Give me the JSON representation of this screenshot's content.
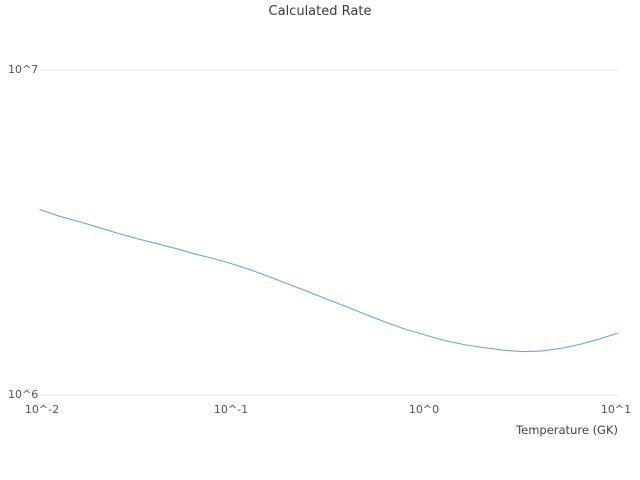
{
  "chart_data": {
    "type": "line",
    "title": "Calculated Rate",
    "xlabel": "Temperature (GK)",
    "ylabel": "",
    "xscale": "log",
    "yscale": "log",
    "xlim_log10": [
      -2,
      1
    ],
    "ylim_log10": [
      6,
      7
    ],
    "xticks": [
      "10^-2",
      "10^-1",
      "10^0",
      "10^1"
    ],
    "yticks": [
      "10^6",
      "10^7"
    ],
    "grid": "major-horizontal",
    "legend": "none",
    "line_color": "#6aa9d8",
    "series": [
      {
        "name": "Calculated Rate",
        "x": [
          0.01,
          0.0126,
          0.0158,
          0.02,
          0.0251,
          0.0316,
          0.0398,
          0.0501,
          0.0631,
          0.0794,
          0.1,
          0.126,
          0.158,
          0.2,
          0.251,
          0.316,
          0.398,
          0.501,
          0.631,
          0.794,
          1.0,
          1.26,
          1.58,
          2.0,
          2.51,
          3.16,
          3.98,
          5.01,
          6.31,
          7.94,
          10.0
        ],
        "y": [
          3720000,
          3550000,
          3420000,
          3280000,
          3150000,
          3030000,
          2930000,
          2830000,
          2720000,
          2630000,
          2530000,
          2420000,
          2300000,
          2180000,
          2070000,
          1960000,
          1860000,
          1760000,
          1670000,
          1590000,
          1530000,
          1470000,
          1430000,
          1400000,
          1375000,
          1360000,
          1365000,
          1390000,
          1430000,
          1485000,
          1550000
        ]
      }
    ]
  }
}
